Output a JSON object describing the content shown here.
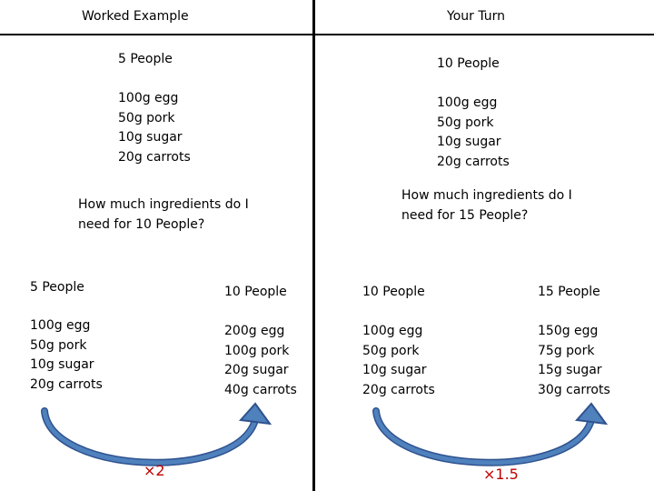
{
  "headers": {
    "left": "Worked Example",
    "right": "Your Turn"
  },
  "worked_example": {
    "people": "5 People",
    "ingredients": [
      "100g egg",
      "50g pork",
      "10g sugar",
      "20g carrots"
    ],
    "question": [
      "How much ingredients do I",
      "need for 10 People?"
    ],
    "from": {
      "people": "5 People",
      "ingredients": [
        "100g egg",
        "50g pork",
        "10g sugar",
        "20g carrots"
      ]
    },
    "to": {
      "people": "10 People",
      "ingredients": [
        "200g egg",
        "100g pork",
        "20g sugar",
        "40g carrots"
      ]
    },
    "multiplier": "×2"
  },
  "your_turn": {
    "people": "10 People",
    "ingredients": [
      "100g egg",
      "50g pork",
      "10g sugar",
      "20g carrots"
    ],
    "question": [
      "How much ingredients do I",
      "need for 15 People?"
    ],
    "from": {
      "people": "10 People",
      "ingredients": [
        "100g egg",
        "50g pork",
        "10g sugar",
        "20g carrots"
      ]
    },
    "to": {
      "people": "15 People",
      "ingredients": [
        "150g egg",
        "75g pork",
        "15g sugar",
        "30g carrots"
      ]
    },
    "multiplier": "×1.5"
  },
  "colors": {
    "arrow_fill": "#4f81bd",
    "arrow_stroke": "#2f528f",
    "multiplier": "#c00000"
  }
}
